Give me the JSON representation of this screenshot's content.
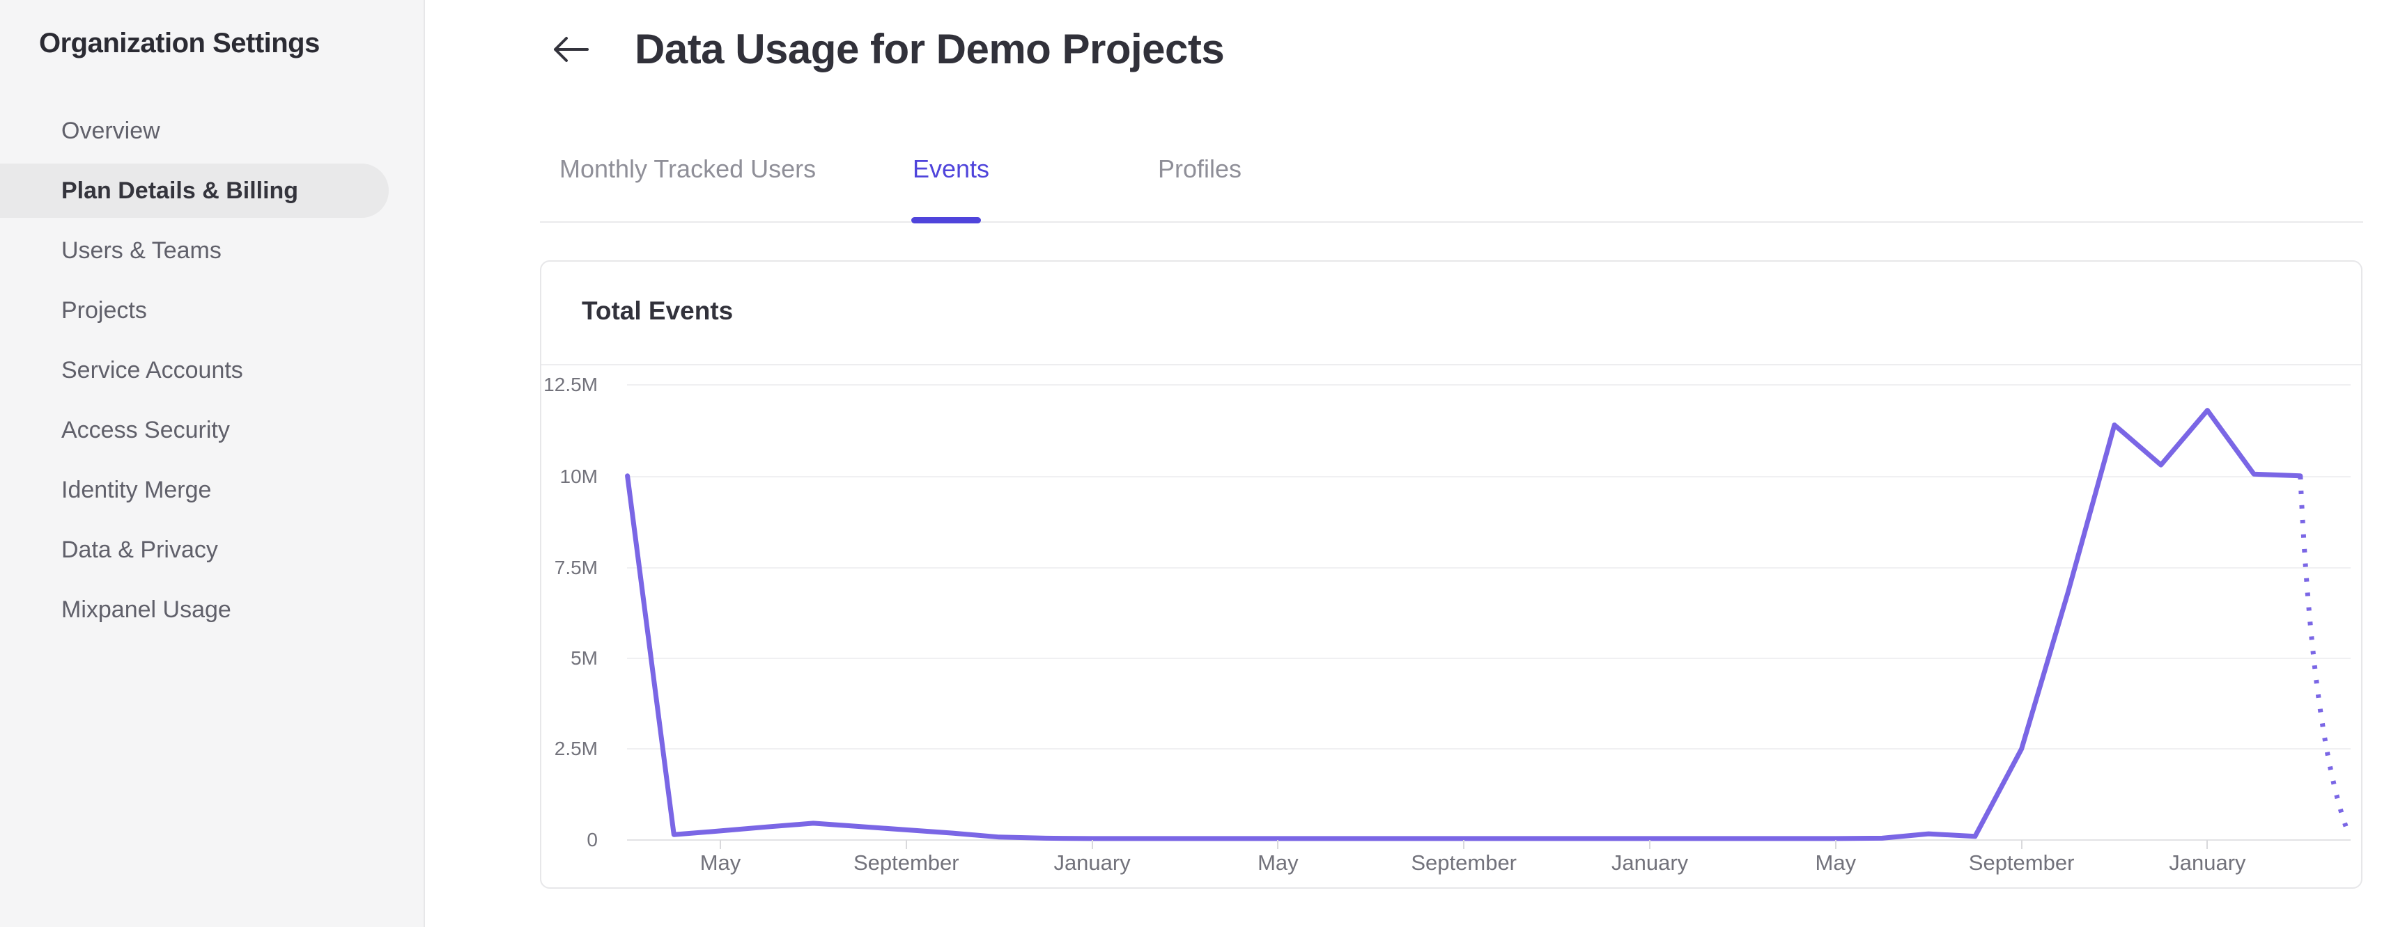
{
  "sidebar": {
    "title": "Organization Settings",
    "items": [
      {
        "label": "Overview",
        "active": false
      },
      {
        "label": "Plan Details & Billing",
        "active": true
      },
      {
        "label": "Users & Teams",
        "active": false
      },
      {
        "label": "Projects",
        "active": false
      },
      {
        "label": "Service Accounts",
        "active": false
      },
      {
        "label": "Access Security",
        "active": false
      },
      {
        "label": "Identity Merge",
        "active": false
      },
      {
        "label": "Data & Privacy",
        "active": false
      },
      {
        "label": "Mixpanel Usage",
        "active": false
      }
    ]
  },
  "header": {
    "title": "Data Usage for Demo Projects",
    "back_icon": "arrow-left-icon"
  },
  "tabs": [
    {
      "label": "Monthly Tracked Users",
      "active": false
    },
    {
      "label": "Events",
      "active": true
    },
    {
      "label": "Profiles",
      "active": false
    }
  ],
  "card": {
    "title": "Total Events"
  },
  "colors": {
    "accent": "#4f44db",
    "chart_line": "#7a66e5",
    "active_pill": "#e9e9ea",
    "sidebar_bg": "#f5f5f6"
  },
  "chart_data": {
    "type": "line",
    "title": "Total Events",
    "ylabel": "",
    "xlabel": "",
    "ylim_millions": [
      0,
      12.5
    ],
    "grid": true,
    "legend": "none",
    "y_ticks": [
      "12.5M",
      "10M",
      "7.5M",
      "5M",
      "2.5M",
      "0"
    ],
    "x_tick_labels": [
      "May",
      "September",
      "January",
      "May",
      "September",
      "January",
      "May",
      "September",
      "January"
    ],
    "x_tick_point_indices": [
      2,
      6,
      10,
      14,
      18,
      22,
      26,
      30,
      34
    ],
    "points_monthly_millions": [
      10.0,
      0.15,
      0.25,
      0.36,
      0.46,
      0.37,
      0.28,
      0.19,
      0.08,
      0.05,
      0.04,
      0.04,
      0.04,
      0.04,
      0.04,
      0.04,
      0.04,
      0.04,
      0.04,
      0.04,
      0.04,
      0.04,
      0.04,
      0.04,
      0.04,
      0.04,
      0.04,
      0.05,
      0.17,
      0.1,
      2.5,
      6.8,
      11.4,
      10.3,
      11.8,
      10.05,
      10.0,
      0.3
    ],
    "dashed_tail_points": 1,
    "dashed_tail_note": "final segment rendered dotted (partial month projection)"
  }
}
